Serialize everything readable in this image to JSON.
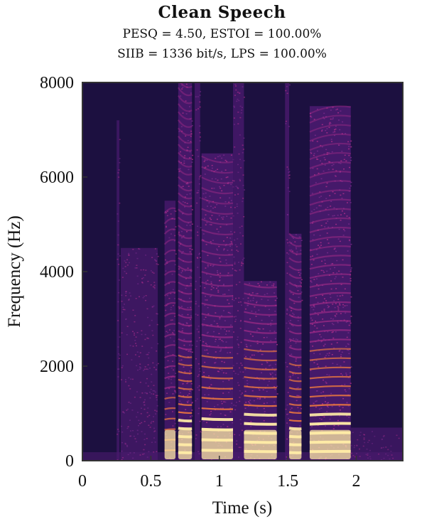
{
  "chart_data": {
    "type": "heatmap",
    "title": "Clean Speech",
    "subtitle_lines": [
      "PESQ = 4.50, ESTOI = 100.00%",
      "SIIB = 1336 bit/s, LPS = 100.00%"
    ],
    "xlabel": "Time (s)",
    "ylabel": "Frequency (Hz)",
    "xlim": [
      0,
      2.34
    ],
    "ylim": [
      0,
      8000
    ],
    "x_ticks": [
      0,
      0.5,
      1,
      1.5,
      2
    ],
    "x_tick_labels": [
      "0",
      "0.5",
      "1",
      "1.5",
      "2"
    ],
    "y_ticks": [
      0,
      2000,
      4000,
      6000,
      8000
    ],
    "y_tick_labels": [
      "0",
      "2000",
      "4000",
      "6000",
      "8000"
    ],
    "colormap": "magma",
    "colors": {
      "background": "#1c1040",
      "low": "#4a1a6e",
      "mid": "#b02e8c",
      "high": "#f07a3e",
      "peak": "#fde9a6"
    },
    "speech_segments": [
      {
        "start": 0.25,
        "end": 0.27,
        "fmax": 7200,
        "energy": 0.35,
        "voiced": false
      },
      {
        "start": 0.28,
        "end": 0.55,
        "fmax": 4500,
        "energy": 0.45,
        "voiced": false
      },
      {
        "start": 0.6,
        "end": 0.68,
        "fmax": 5500,
        "energy": 0.55,
        "voiced": true
      },
      {
        "start": 0.7,
        "end": 0.8,
        "fmax": 8000,
        "energy": 0.85,
        "voiced": true
      },
      {
        "start": 0.82,
        "end": 0.86,
        "fmax": 8000,
        "energy": 0.6,
        "voiced": false
      },
      {
        "start": 0.87,
        "end": 1.1,
        "fmax": 6500,
        "energy": 0.9,
        "voiced": true
      },
      {
        "start": 1.1,
        "end": 1.18,
        "fmax": 8000,
        "energy": 0.55,
        "voiced": false
      },
      {
        "start": 1.18,
        "end": 1.42,
        "fmax": 3800,
        "energy": 0.9,
        "voiced": true
      },
      {
        "start": 1.48,
        "end": 1.51,
        "fmax": 8000,
        "energy": 0.6,
        "voiced": false
      },
      {
        "start": 1.51,
        "end": 1.6,
        "fmax": 4800,
        "energy": 0.8,
        "voiced": true
      },
      {
        "start": 1.66,
        "end": 1.96,
        "fmax": 7500,
        "energy": 0.9,
        "voiced": true
      },
      {
        "start": 1.96,
        "end": 2.34,
        "fmax": 700,
        "energy": 0.25,
        "voiced": false
      }
    ]
  }
}
